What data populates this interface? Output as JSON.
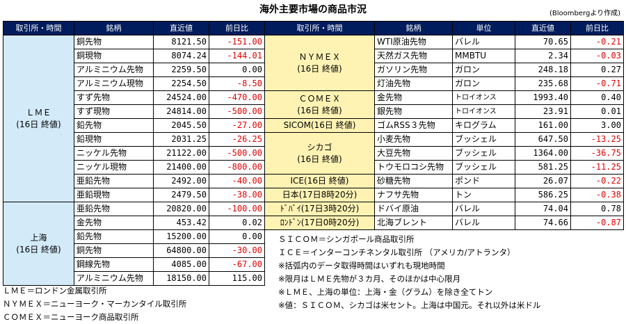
{
  "title": "海外主要市場の商品市況",
  "source": "(Bloombergより作成)",
  "headers": {
    "exchange": "取引所・時間",
    "item": "銘柄",
    "price": "直近値",
    "change": "前日比",
    "unit": "単位"
  },
  "left_groups": [
    {
      "name": "ＬＭＥ",
      "time": "(16日 終値)"
    },
    {
      "name": "上海",
      "time": "(16日 終値)"
    }
  ],
  "left_rows": [
    {
      "item": "銅先物",
      "price": "8121.50",
      "change": "-151.00",
      "neg": true
    },
    {
      "item": "銅現物",
      "price": "8074.24",
      "change": "-144.01",
      "neg": true
    },
    {
      "item": "アルミニウム先物",
      "price": "2259.50",
      "change": "0.00",
      "neg": false
    },
    {
      "item": "アルミニウム現物",
      "price": "2254.50",
      "change": "-8.50",
      "neg": true
    },
    {
      "item": "すず先物",
      "price": "24524.00",
      "change": "-470.00",
      "neg": true
    },
    {
      "item": "すず現物",
      "price": "24814.00",
      "change": "-500.00",
      "neg": true
    },
    {
      "item": "鉛先物",
      "price": "2045.50",
      "change": "-27.00",
      "neg": true
    },
    {
      "item": "鉛現物",
      "price": "2031.25",
      "change": "-26.25",
      "neg": true
    },
    {
      "item": "ニッケル先物",
      "price": "21122.00",
      "change": "-500.00",
      "neg": true
    },
    {
      "item": "ニッケル現物",
      "price": "21400.00",
      "change": "-800.00",
      "neg": true
    },
    {
      "item": "亜鉛先物",
      "price": "2492.00",
      "change": "-40.00",
      "neg": true
    },
    {
      "item": "亜鉛現物",
      "price": "2479.50",
      "change": "-38.00",
      "neg": true
    },
    {
      "item": "亜鉛先物",
      "price": "20820.00",
      "change": "-100.00",
      "neg": true
    },
    {
      "item": "金先物",
      "price": "453.42",
      "change": "0.02",
      "neg": false
    },
    {
      "item": "鉛先物",
      "price": "15200.00",
      "change": "0.00",
      "neg": false
    },
    {
      "item": "銅先物",
      "price": "64800.00",
      "change": "-30.00",
      "neg": true
    },
    {
      "item": "鋼線先物",
      "price": "4085.00",
      "change": "-67.00",
      "neg": true
    },
    {
      "item": "アルミニウム先物",
      "price": "18150.00",
      "change": "115.00",
      "neg": false
    }
  ],
  "right_groups": [
    {
      "name": "ＮＹＭＥＸ",
      "time": "(16日 終値)"
    },
    {
      "name": "ＣＯＭＥＸ",
      "time": "(16日 終値)"
    },
    {
      "name": "SICOM(16日 終値)",
      "time": ""
    },
    {
      "name": "シカゴ",
      "time": "(16日 終値)"
    },
    {
      "name": "ICE(16日 終値)",
      "time": ""
    },
    {
      "name": "日本(17日8時20分)",
      "time": ""
    },
    {
      "name": "ﾄﾞﾊﾞｲ(17日3時20分)",
      "time": ""
    },
    {
      "name": "ﾛﾝﾄﾞﾝ(17日0時20分)",
      "time": ""
    }
  ],
  "right_rows": [
    {
      "item": "WTI原油先物",
      "unit": "バレル",
      "price": "70.65",
      "change": "-0.21",
      "neg": true
    },
    {
      "item": "天然ガス先物",
      "unit": "MMBTU",
      "price": "2.34",
      "change": "-0.03",
      "neg": true
    },
    {
      "item": "ガソリン先物",
      "unit": "ガロン",
      "price": "248.18",
      "change": "0.27",
      "neg": false
    },
    {
      "item": "灯油先物",
      "unit": "ガロン",
      "price": "235.68",
      "change": "-0.71",
      "neg": true
    },
    {
      "item": "金先物",
      "unit": "トロイオンス",
      "price": "1993.40",
      "change": "0.40",
      "neg": false
    },
    {
      "item": "銀先物",
      "unit": "トロイオンス",
      "price": "23.91",
      "change": "0.01",
      "neg": false
    },
    {
      "item": "ゴムRSS３先物",
      "unit": "キログラム",
      "price": "161.00",
      "change": "3.00",
      "neg": false
    },
    {
      "item": "小麦先物",
      "unit": "ブッシェル",
      "price": "647.50",
      "change": "-13.25",
      "neg": true
    },
    {
      "item": "大豆先物",
      "unit": "ブッシェル",
      "price": "1364.00",
      "change": "-36.75",
      "neg": true
    },
    {
      "item": "トウモロコシ先物",
      "unit": "ブッシェル",
      "price": "581.25",
      "change": "-11.25",
      "neg": true
    },
    {
      "item": "砂糖先物",
      "unit": "ポンド",
      "price": "26.07",
      "change": "-0.22",
      "neg": true
    },
    {
      "item": "ナフサ先物",
      "unit": "トン",
      "price": "586.25",
      "change": "-0.38",
      "neg": true
    },
    {
      "item": "ドバイ原油",
      "unit": "バレル",
      "price": "74.04",
      "change": "0.78",
      "neg": false
    },
    {
      "item": "北海ブレント",
      "unit": "バレル",
      "price": "74.66",
      "change": "-0.87",
      "neg": true
    }
  ],
  "notes_right": [
    "ＳＩＣＯＭ＝シンガポール商品取引所",
    "ＩＣＥ＝インターコンチネンタル取引所 （アメリカ/アトランタ）",
    "※括弧内のデータ取得時間はいずれも現地時間",
    "※限月はＬＭＥ先物が３カ月、そのほかは中心限月",
    "※ＬＭＥ、上海の単位：上海・金（グラム）を除き全てトン",
    "※値：ＳＩＣＯＭ、シカゴは米セント。上海は中国元。それ以外は米ドル"
  ],
  "notes_left": [
    "ＬＭＥ＝ロンドン金属取引所",
    "ＮＹＭＥＸ＝ニューヨーク・マーカンタイル取引所",
    "ＣＯＭＥＸ＝ニューヨーク商品取引所"
  ],
  "colors": {
    "header_bg": "#001c5c",
    "left_group_bg": "#d3eaf9",
    "right_group_bg": "#fff3b4",
    "negative": "#e00000"
  }
}
